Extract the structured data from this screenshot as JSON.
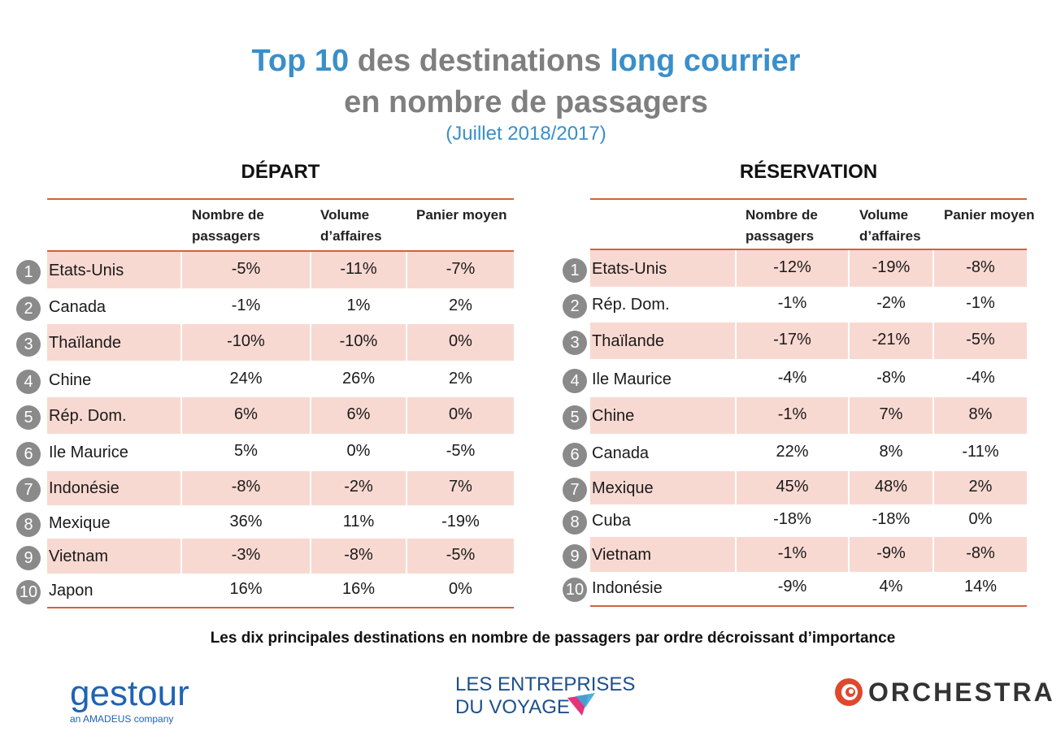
{
  "title": {
    "line1_part1": "Top 10",
    "line1_part2": " des destinations ",
    "line1_part3": "long courrier",
    "line2": "en nombre de passagers",
    "subtitle": "(Juillet 2018/2017)"
  },
  "tables": [
    {
      "title": "DÉPART",
      "headers": [
        "Nombre de passagers",
        "Volume d’affaires",
        "Panier moyen"
      ],
      "rows": [
        {
          "rank": "1",
          "name": "Etats-Unis",
          "values": [
            "-5%",
            "-11%",
            "-7%"
          ]
        },
        {
          "rank": "2",
          "name": "Canada",
          "values": [
            "-1%",
            "1%",
            "2%"
          ]
        },
        {
          "rank": "3",
          "name": "Thaïlande",
          "values": [
            "-10%",
            "-10%",
            "0%"
          ]
        },
        {
          "rank": "4",
          "name": "Chine",
          "values": [
            "24%",
            "26%",
            "2%"
          ]
        },
        {
          "rank": "5",
          "name": "Rép. Dom.",
          "values": [
            "6%",
            "6%",
            "0%"
          ]
        },
        {
          "rank": "6",
          "name": "Ile Maurice",
          "values": [
            "5%",
            "0%",
            "-5%"
          ]
        },
        {
          "rank": "7",
          "name": "Indonésie",
          "values": [
            "-8%",
            "-2%",
            "7%"
          ]
        },
        {
          "rank": "8",
          "name": "Mexique",
          "values": [
            "36%",
            "11%",
            "-19%"
          ]
        },
        {
          "rank": "9",
          "name": "Vietnam",
          "values": [
            "-3%",
            "-8%",
            "-5%"
          ]
        },
        {
          "rank": "10",
          "name": "Japon",
          "values": [
            "16%",
            "16%",
            "0%"
          ]
        }
      ]
    },
    {
      "title": "RÉSERVATION",
      "headers": [
        "Nombre de passagers",
        "Volume d’affaires",
        "Panier moyen"
      ],
      "rows": [
        {
          "rank": "1",
          "name": "Etats-Unis",
          "values": [
            "-12%",
            "-19%",
            "-8%"
          ]
        },
        {
          "rank": "2",
          "name": "Rép. Dom.",
          "values": [
            "-1%",
            "-2%",
            "-1%"
          ]
        },
        {
          "rank": "3",
          "name": "Thaïlande",
          "values": [
            "-17%",
            "-21%",
            "-5%"
          ]
        },
        {
          "rank": "4",
          "name": "Ile Maurice",
          "values": [
            "-4%",
            "-8%",
            "-4%"
          ]
        },
        {
          "rank": "5",
          "name": "Chine",
          "values": [
            "-1%",
            "7%",
            "8%"
          ]
        },
        {
          "rank": "6",
          "name": "Canada",
          "values": [
            "22%",
            "8%",
            "-11%"
          ]
        },
        {
          "rank": "7",
          "name": "Mexique",
          "values": [
            "45%",
            "48%",
            "2%"
          ]
        },
        {
          "rank": "8",
          "name": "Cuba",
          "values": [
            "-18%",
            "-18%",
            "0%"
          ]
        },
        {
          "rank": "9",
          "name": "Vietnam",
          "values": [
            "-1%",
            "-9%",
            "-8%"
          ]
        },
        {
          "rank": "10",
          "name": "Indonésie",
          "values": [
            "-9%",
            "4%",
            "14%"
          ]
        }
      ]
    }
  ],
  "footnote": "Les dix principales destinations en nombre de passagers par ordre décroissant d’importance",
  "logos": {
    "gestour": "gestour",
    "gestour_tagline": "an AMADEUS company",
    "edv_line1": "LES ENTREPRISES",
    "edv_line2": "DU VOYAGE",
    "orchestra": "ORCHESTRA"
  },
  "colors": {
    "accent_blue": "#3a8fc9",
    "title_grey": "#7f7f7f",
    "rule_orange": "#d4623a",
    "row_shade": "#f8d9d2",
    "rank_circle": "#8a8a8a"
  }
}
